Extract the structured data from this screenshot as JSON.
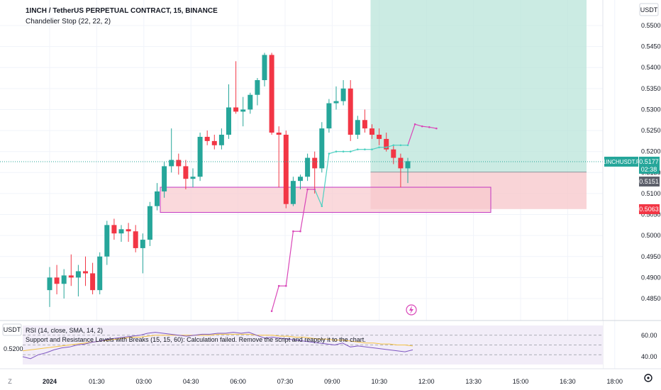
{
  "header": {
    "title": "1INCH / TetherUS PERPETUAL CONTRACT, 15, BINANCE",
    "indicator": "Chandelier Stop (22, 22, 2)"
  },
  "price_axis": {
    "currency": "USDT",
    "ticks": [
      "0.5500",
      "0.5450",
      "0.5400",
      "0.5350",
      "0.5300",
      "0.5250",
      "0.5200",
      "0.5150",
      "0.5100",
      "0.5050",
      "0.5000",
      "0.4950",
      "0.4900",
      "0.4850"
    ]
  },
  "price_badges": {
    "symbol": "1INCHUSDT.P",
    "last_price": "0.5177",
    "countdown": "02:38",
    "entry_price": "0.5151",
    "stop_price": "0.5063"
  },
  "rsi_panel": {
    "currency": "USDT",
    "left_value": "0.5200",
    "title": "RSI (14, close, SMA, 14, 2)",
    "note": "Support and Resistance Levels with Breaks (15, 15, 60): Calculation failed. Remove the script and reapply it to the chart.",
    "ticks": [
      "60.00",
      "40.00"
    ]
  },
  "time_axis": {
    "ticks": [
      "2024",
      "01:30",
      "03:00",
      "04:30",
      "06:00",
      "07:30",
      "09:00",
      "10:30",
      "12:00",
      "13:30",
      "15:00",
      "16:30",
      "18:00"
    ],
    "zone_label": "Z"
  },
  "colors": {
    "up": "#26a69a",
    "down": "#f23645",
    "stop_line": "#d946b8",
    "rsi_line": "#7e57c2",
    "rsi_ma": "#f5c242",
    "profit_zone": "#b9e4da",
    "loss_zone": "#f8c9cd",
    "sr_box": "#f8c9cd",
    "sr_border": "#c236c2"
  },
  "chart_data": {
    "type": "candlestick",
    "title": "1INCH / TetherUS PERPETUAL CONTRACT, 15, BINANCE",
    "interval": "15",
    "x_ticks": [
      "2024",
      "01:30",
      "03:00",
      "04:30",
      "06:00",
      "07:30",
      "09:00",
      "10:30",
      "12:00",
      "13:30",
      "15:00",
      "16:30",
      "18:00"
    ],
    "ylim": [
      0.482,
      0.556
    ],
    "candles": [
      {
        "o": 0.487,
        "h": 0.4925,
        "l": 0.483,
        "c": 0.49
      },
      {
        "o": 0.49,
        "h": 0.493,
        "l": 0.486,
        "c": 0.4885
      },
      {
        "o": 0.4885,
        "h": 0.492,
        "l": 0.485,
        "c": 0.4905
      },
      {
        "o": 0.4905,
        "h": 0.4955,
        "l": 0.488,
        "c": 0.49
      },
      {
        "o": 0.49,
        "h": 0.493,
        "l": 0.4855,
        "c": 0.4915
      },
      {
        "o": 0.4915,
        "h": 0.495,
        "l": 0.488,
        "c": 0.491
      },
      {
        "o": 0.491,
        "h": 0.4935,
        "l": 0.486,
        "c": 0.487
      },
      {
        "o": 0.487,
        "h": 0.496,
        "l": 0.486,
        "c": 0.495
      },
      {
        "o": 0.495,
        "h": 0.5035,
        "l": 0.493,
        "c": 0.5025
      },
      {
        "o": 0.5025,
        "h": 0.504,
        "l": 0.499,
        "c": 0.5005
      },
      {
        "o": 0.5005,
        "h": 0.5025,
        "l": 0.4985,
        "c": 0.5015
      },
      {
        "o": 0.5015,
        "h": 0.503,
        "l": 0.4985,
        "c": 0.501
      },
      {
        "o": 0.501,
        "h": 0.5025,
        "l": 0.496,
        "c": 0.497
      },
      {
        "o": 0.497,
        "h": 0.5005,
        "l": 0.491,
        "c": 0.499
      },
      {
        "o": 0.499,
        "h": 0.508,
        "l": 0.4975,
        "c": 0.507
      },
      {
        "o": 0.507,
        "h": 0.5125,
        "l": 0.506,
        "c": 0.5105
      },
      {
        "o": 0.5105,
        "h": 0.5175,
        "l": 0.509,
        "c": 0.5165
      },
      {
        "o": 0.5165,
        "h": 0.5255,
        "l": 0.515,
        "c": 0.518
      },
      {
        "o": 0.518,
        "h": 0.5195,
        "l": 0.5145,
        "c": 0.5165
      },
      {
        "o": 0.5165,
        "h": 0.518,
        "l": 0.511,
        "c": 0.5135
      },
      {
        "o": 0.5135,
        "h": 0.516,
        "l": 0.5115,
        "c": 0.514
      },
      {
        "o": 0.514,
        "h": 0.5245,
        "l": 0.513,
        "c": 0.5235
      },
      {
        "o": 0.5235,
        "h": 0.525,
        "l": 0.5215,
        "c": 0.5225
      },
      {
        "o": 0.5225,
        "h": 0.524,
        "l": 0.5205,
        "c": 0.5215
      },
      {
        "o": 0.5215,
        "h": 0.5255,
        "l": 0.5205,
        "c": 0.524
      },
      {
        "o": 0.524,
        "h": 0.536,
        "l": 0.523,
        "c": 0.5305
      },
      {
        "o": 0.5305,
        "h": 0.5415,
        "l": 0.529,
        "c": 0.5295
      },
      {
        "o": 0.5295,
        "h": 0.533,
        "l": 0.526,
        "c": 0.53
      },
      {
        "o": 0.53,
        "h": 0.534,
        "l": 0.529,
        "c": 0.5335
      },
      {
        "o": 0.5335,
        "h": 0.5375,
        "l": 0.531,
        "c": 0.537
      },
      {
        "o": 0.537,
        "h": 0.5435,
        "l": 0.5355,
        "c": 0.543
      },
      {
        "o": 0.543,
        "h": 0.5435,
        "l": 0.524,
        "c": 0.5245
      },
      {
        "o": 0.5245,
        "h": 0.526,
        "l": 0.5115,
        "c": 0.524
      },
      {
        "o": 0.524,
        "h": 0.525,
        "l": 0.5065,
        "c": 0.5075
      },
      {
        "o": 0.5075,
        "h": 0.514,
        "l": 0.507,
        "c": 0.513
      },
      {
        "o": 0.513,
        "h": 0.5145,
        "l": 0.511,
        "c": 0.514
      },
      {
        "o": 0.514,
        "h": 0.5195,
        "l": 0.513,
        "c": 0.5185
      },
      {
        "o": 0.5185,
        "h": 0.52,
        "l": 0.51,
        "c": 0.516
      },
      {
        "o": 0.516,
        "h": 0.527,
        "l": 0.515,
        "c": 0.5255
      },
      {
        "o": 0.5255,
        "h": 0.5325,
        "l": 0.5245,
        "c": 0.5315
      },
      {
        "o": 0.5315,
        "h": 0.5355,
        "l": 0.53,
        "c": 0.532
      },
      {
        "o": 0.532,
        "h": 0.537,
        "l": 0.531,
        "c": 0.535
      },
      {
        "o": 0.535,
        "h": 0.537,
        "l": 0.5225,
        "c": 0.524
      },
      {
        "o": 0.524,
        "h": 0.5285,
        "l": 0.523,
        "c": 0.5275
      },
      {
        "o": 0.5275,
        "h": 0.53,
        "l": 0.5245,
        "c": 0.5255
      },
      {
        "o": 0.5255,
        "h": 0.5265,
        "l": 0.523,
        "c": 0.524
      },
      {
        "o": 0.524,
        "h": 0.5255,
        "l": 0.5215,
        "c": 0.523
      },
      {
        "o": 0.523,
        "h": 0.5245,
        "l": 0.52,
        "c": 0.5205
      },
      {
        "o": 0.5205,
        "h": 0.5215,
        "l": 0.517,
        "c": 0.5185
      },
      {
        "o": 0.5185,
        "h": 0.5195,
        "l": 0.5115,
        "c": 0.516
      },
      {
        "o": 0.516,
        "h": 0.5185,
        "l": 0.5125,
        "c": 0.5177
      }
    ],
    "chandelier_stop": [
      {
        "i": 31,
        "v": 0.482
      },
      {
        "i": 32,
        "v": 0.488
      },
      {
        "i": 33,
        "v": 0.488
      },
      {
        "i": 34,
        "v": 0.501
      },
      {
        "i": 35,
        "v": 0.501
      },
      {
        "i": 36,
        "v": 0.511
      },
      {
        "i": 37,
        "v": 0.511
      },
      {
        "i": 38,
        "v": 0.507
      },
      {
        "i": 39,
        "v": 0.5195
      },
      {
        "i": 40,
        "v": 0.52
      },
      {
        "i": 41,
        "v": 0.52
      },
      {
        "i": 42,
        "v": 0.52
      },
      {
        "i": 43,
        "v": 0.5205
      },
      {
        "i": 44,
        "v": 0.5205
      },
      {
        "i": 45,
        "v": 0.5205
      },
      {
        "i": 46,
        "v": 0.521
      },
      {
        "i": 47,
        "v": 0.521
      },
      {
        "i": 48,
        "v": 0.5215
      },
      {
        "i": 49,
        "v": 0.5215
      },
      {
        "i": 50,
        "v": 0.5215
      },
      {
        "i": 51,
        "v": 0.5265
      },
      {
        "i": 52,
        "v": 0.526
      },
      {
        "i": 53,
        "v": 0.5258
      },
      {
        "i": 54,
        "v": 0.5255
      }
    ],
    "support_resistance_box": {
      "start_index": 14,
      "end_index": 60,
      "top": 0.5115,
      "bottom": 0.5055
    },
    "position": {
      "entry": 0.5151,
      "stop": 0.5063,
      "target": 0.556,
      "start_index": 45,
      "end_index": 72
    },
    "rsi": {
      "values": [
        38,
        36,
        40,
        42,
        45,
        47,
        48,
        50,
        51,
        53,
        54,
        56,
        57,
        58,
        59,
        60,
        62,
        63,
        62,
        61,
        60,
        59,
        60,
        61,
        61,
        62,
        62,
        63,
        62,
        63,
        60,
        57,
        58,
        57,
        56,
        55,
        54,
        53,
        52,
        51,
        50,
        52,
        48,
        49,
        48,
        47,
        46,
        45,
        44,
        43,
        45
      ]
    },
    "rsi_ma": {
      "values": [
        44,
        45,
        46,
        47,
        48,
        49,
        50,
        51,
        52,
        53,
        54,
        55,
        56,
        57,
        58,
        58,
        59,
        60,
        60,
        60,
        60,
        60,
        60,
        60,
        60,
        61,
        61,
        61,
        61,
        61,
        60,
        60,
        60,
        59,
        59,
        58,
        58,
        57,
        56,
        56,
        55,
        55,
        54,
        53,
        52,
        52,
        51,
        51,
        50,
        50,
        49
      ]
    },
    "rsi_ylim": [
      30,
      70
    ],
    "rsi_levels": [
      60,
      50,
      40
    ]
  }
}
